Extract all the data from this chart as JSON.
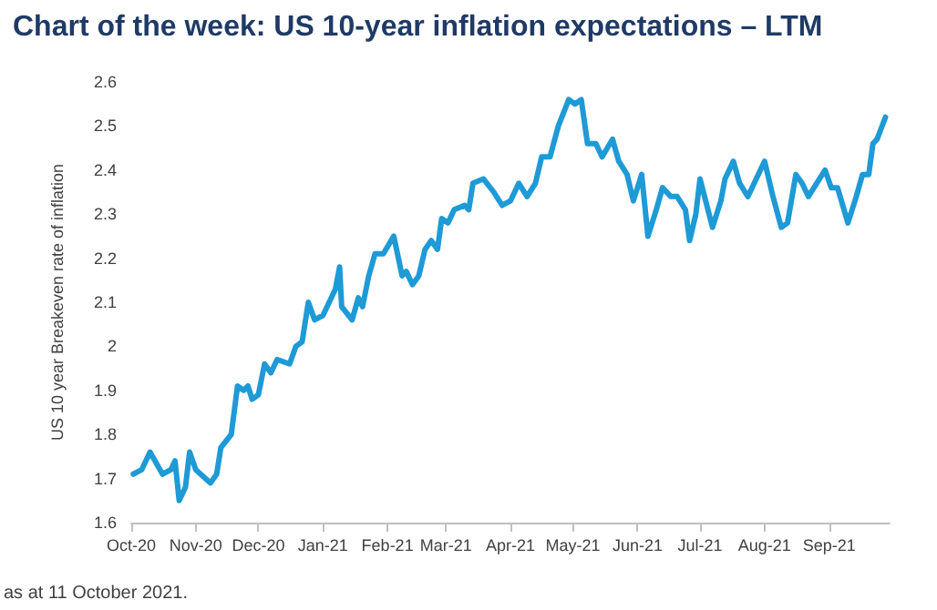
{
  "chart_data": {
    "type": "line",
    "title": "Chart of the week: US 10-year inflation expectations – LTM",
    "ylabel": "US 10 year Breakeven rate of inflation",
    "annotations": [
      "as at 11 October 2021."
    ],
    "x": [
      "2020-10-02",
      "2020-10-06",
      "2020-10-10",
      "2020-10-16",
      "2020-10-20",
      "2020-10-22",
      "2020-10-24",
      "2020-10-27",
      "2020-10-29",
      "2020-11-01",
      "2020-11-08",
      "2020-11-11",
      "2020-11-13",
      "2020-11-18",
      "2020-11-21",
      "2020-11-24",
      "2020-11-26",
      "2020-11-28",
      "2020-12-01",
      "2020-12-04",
      "2020-12-07",
      "2020-12-10",
      "2020-12-16",
      "2020-12-19",
      "2020-12-22",
      "2020-12-25",
      "2020-12-28",
      "2021-01-01",
      "2021-01-04",
      "2021-01-07",
      "2021-01-09",
      "2021-01-10",
      "2021-01-15",
      "2021-01-18",
      "2021-01-20",
      "2021-01-23",
      "2021-01-26",
      "2021-01-30",
      "2021-02-04",
      "2021-02-08",
      "2021-02-10",
      "2021-02-13",
      "2021-02-16",
      "2021-02-19",
      "2021-02-22",
      "2021-02-25",
      "2021-02-27",
      "2021-03-02",
      "2021-03-05",
      "2021-03-10",
      "2021-03-12",
      "2021-03-14",
      "2021-03-19",
      "2021-03-24",
      "2021-03-28",
      "2021-04-01",
      "2021-04-05",
      "2021-04-09",
      "2021-04-13",
      "2021-04-16",
      "2021-04-20",
      "2021-04-24",
      "2021-04-29",
      "2021-05-02",
      "2021-05-05",
      "2021-05-08",
      "2021-05-12",
      "2021-05-15",
      "2021-05-20",
      "2021-05-23",
      "2021-05-27",
      "2021-05-30",
      "2021-06-03",
      "2021-06-06",
      "2021-06-10",
      "2021-06-13",
      "2021-06-17",
      "2021-06-20",
      "2021-06-24",
      "2021-06-26",
      "2021-06-29",
      "2021-07-01",
      "2021-07-07",
      "2021-07-11",
      "2021-07-13",
      "2021-07-17",
      "2021-07-20",
      "2021-07-24",
      "2021-07-27",
      "2021-08-01",
      "2021-08-05",
      "2021-08-09",
      "2021-08-12",
      "2021-08-16",
      "2021-08-19",
      "2021-08-22",
      "2021-08-30",
      "2021-09-02",
      "2021-09-05",
      "2021-09-10",
      "2021-09-14",
      "2021-09-17",
      "2021-09-20",
      "2021-09-22",
      "2021-09-24",
      "2021-09-28"
    ],
    "series": [
      {
        "color": "#1e9ad6",
        "values": [
          1.71,
          1.72,
          1.76,
          1.71,
          1.72,
          1.74,
          1.65,
          1.68,
          1.76,
          1.72,
          1.69,
          1.71,
          1.77,
          1.8,
          1.91,
          1.9,
          1.91,
          1.88,
          1.89,
          1.96,
          1.94,
          1.97,
          1.96,
          2.0,
          2.01,
          2.1,
          2.06,
          2.07,
          2.1,
          2.13,
          2.18,
          2.09,
          2.06,
          2.11,
          2.09,
          2.16,
          2.21,
          2.21,
          2.25,
          2.16,
          2.17,
          2.14,
          2.16,
          2.22,
          2.24,
          2.22,
          2.29,
          2.28,
          2.31,
          2.32,
          2.31,
          2.37,
          2.38,
          2.35,
          2.32,
          2.33,
          2.37,
          2.34,
          2.37,
          2.43,
          2.43,
          2.5,
          2.56,
          2.55,
          2.56,
          2.46,
          2.46,
          2.43,
          2.47,
          2.42,
          2.39,
          2.33,
          2.39,
          2.25,
          2.31,
          2.36,
          2.34,
          2.34,
          2.31,
          2.24,
          2.3,
          2.38,
          2.27,
          2.33,
          2.38,
          2.42,
          2.37,
          2.34,
          2.37,
          2.42,
          2.34,
          2.27,
          2.28,
          2.39,
          2.37,
          2.34,
          2.4,
          2.36,
          2.36,
          2.28,
          2.34,
          2.39,
          2.39,
          2.46,
          2.47,
          2.52
        ]
      }
    ],
    "xlim": [
      "2020-10-01",
      "2021-09-30"
    ],
    "xticks": [
      {
        "value": "2020-10-01",
        "label": "Oct-20"
      },
      {
        "value": "2020-11-01",
        "label": "Nov-20"
      },
      {
        "value": "2020-12-01",
        "label": "Dec-20"
      },
      {
        "value": "2021-01-01",
        "label": "Jan-21"
      },
      {
        "value": "2021-02-01",
        "label": "Feb-21"
      },
      {
        "value": "2021-03-01",
        "label": "Mar-21"
      },
      {
        "value": "2021-04-01",
        "label": "Apr-21"
      },
      {
        "value": "2021-05-01",
        "label": "May-21"
      },
      {
        "value": "2021-06-01",
        "label": "Jun-21"
      },
      {
        "value": "2021-07-01",
        "label": "Jul-21"
      },
      {
        "value": "2021-08-01",
        "label": "Aug-21"
      },
      {
        "value": "2021-09-01",
        "label": "Sep-21"
      }
    ],
    "ylim": [
      1.6,
      2.6
    ],
    "yticks": [
      1.6,
      1.7,
      1.8,
      1.9,
      2,
      2.1,
      2.2,
      2.3,
      2.4,
      2.5,
      2.6
    ],
    "grid": false,
    "marker": "none",
    "line_style": "solid"
  }
}
